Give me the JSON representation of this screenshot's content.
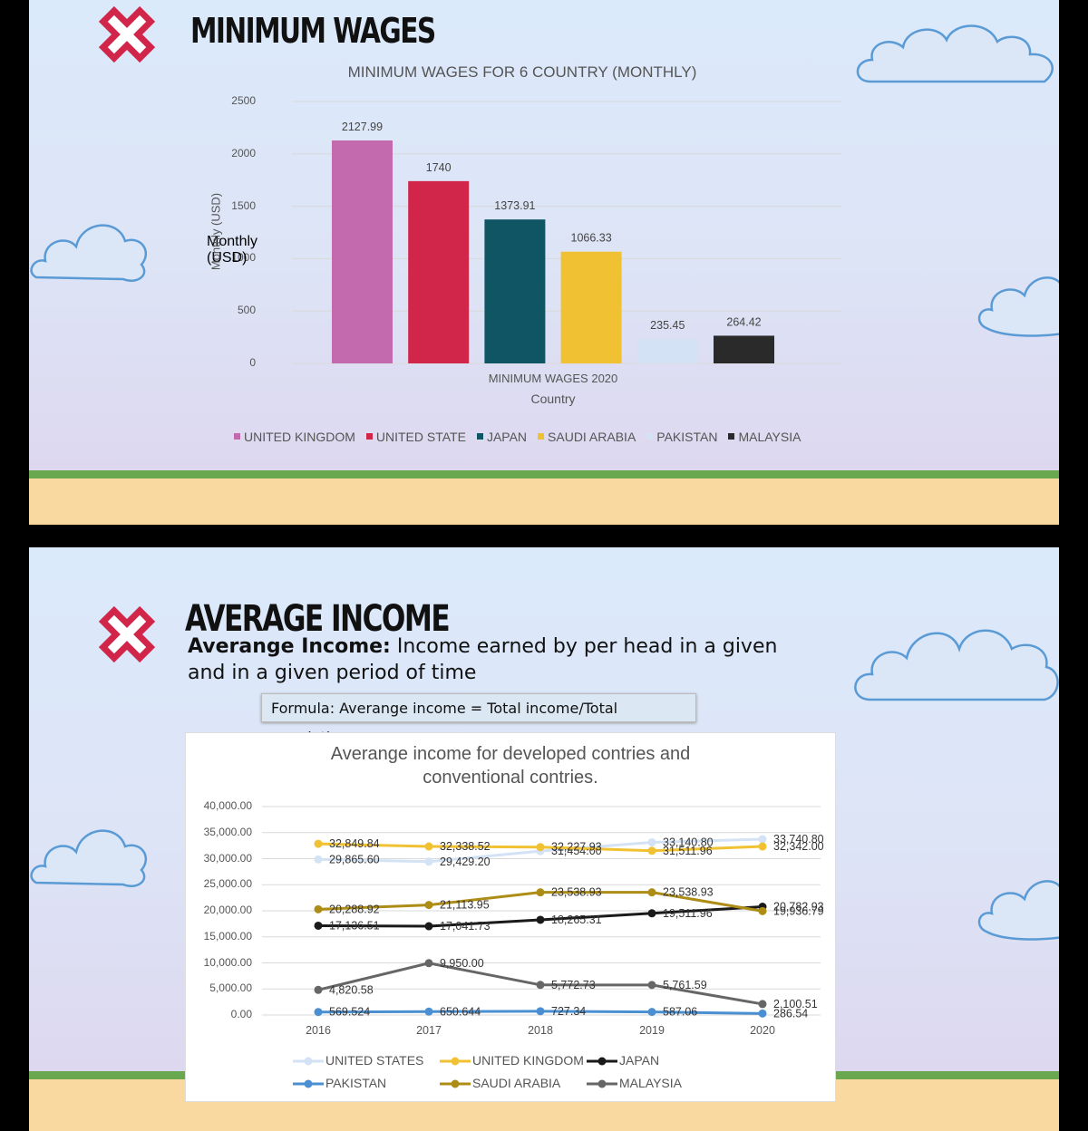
{
  "slide1": {
    "heading": "MINIMUM WAGES",
    "chart_data": {
      "type": "bar",
      "title": "MINIMUM WAGES FOR 6 COUNTRY (MONTHLY)",
      "xlabel": "Country",
      "ylabel": "Monthly (USD)",
      "category_label": "MINIMUM WAGES 2020",
      "ylim": [
        0,
        2500
      ],
      "yticks": [
        "0",
        "500",
        "1000",
        "1500",
        "2000",
        "2500"
      ],
      "grid": true,
      "legend_position": "bottom",
      "series": [
        {
          "name": "UNITED KINGDOM",
          "value": 2127.99,
          "label": "2127.99",
          "color": "#c36aaf"
        },
        {
          "name": "UNITED STATE",
          "value": 1740,
          "label": "1740",
          "color": "#d1254a"
        },
        {
          "name": "JAPAN",
          "value": 1373.91,
          "label": "1373.91",
          "color": "#0f5564"
        },
        {
          "name": "SAUDI ARABIA",
          "value": 1066.33,
          "label": "1066.33",
          "color": "#f0c233"
        },
        {
          "name": "PAKISTAN",
          "value": 235.45,
          "label": "235.45",
          "color": "#d3e2f4"
        },
        {
          "name": "MALAYSIA",
          "value": 264.42,
          "label": "264.42",
          "color": "#2a2a2a"
        }
      ]
    }
  },
  "slide2": {
    "heading": "AVERAGE INCOME",
    "definition_term": "Averange Income:",
    "definition_text_line1": " Income earned by per head in a given",
    "definition_text_line2": "and in a given period of time",
    "formula": "Formula: Averange income = Total income/Total population.",
    "chart_data": {
      "type": "line",
      "title_line1": "Averange income for developed contries and",
      "title_line2": "conventional contries.",
      "x": [
        "2016",
        "2017",
        "2018",
        "2019",
        "2020"
      ],
      "ylim": [
        0,
        40000
      ],
      "yticks": [
        "0.00",
        "5,000.00",
        "10,000.00",
        "15,000.00",
        "20,000.00",
        "25,000.00",
        "30,000.00",
        "35,000.00",
        "40,000.00"
      ],
      "grid": true,
      "legend_position": "bottom",
      "series": [
        {
          "name": "UNITED STATES",
          "color": "#d3e2f4",
          "values": [
            29865.6,
            29429.2,
            31454.0,
            33140.8,
            33740.8
          ],
          "labels": [
            "29,865.60",
            "29,429.20",
            "31,454.00",
            "33,140.80",
            "33,740.80"
          ]
        },
        {
          "name": "UNITED KINGDOM",
          "color": "#f0c233",
          "values": [
            32849.84,
            32338.52,
            32227.93,
            31511.96,
            32342.0
          ],
          "labels": [
            "32,849.84",
            "32,338.52",
            "32,227.93",
            "31,511.96",
            "32,342.00"
          ]
        },
        {
          "name": "JAPAN",
          "color": "#1a1a1a",
          "values": [
            17136.51,
            17041.73,
            18265.31,
            19511.96,
            20782.93
          ],
          "labels": [
            "17,136.51",
            "17,041.73",
            "18,265.31",
            "19,511.96",
            "20,782.93"
          ]
        },
        {
          "name": "PAKISTAN",
          "color": "#4a8fd1",
          "values": [
            569.524,
            650.644,
            727.34,
            587.06,
            286.54
          ],
          "labels": [
            "569.524",
            "650.644",
            "727.34",
            "587.06",
            "286.54"
          ]
        },
        {
          "name": "SAUDI ARABIA",
          "color": "#ad8d16",
          "values": [
            20288.92,
            21113.95,
            23538.93,
            23538.93,
            19936.79
          ],
          "labels": [
            "20,288.92",
            "21,113.95",
            "23,538.93",
            "23,538.93",
            "19,936.79"
          ]
        },
        {
          "name": "MALAYSIA",
          "color": "#666666",
          "values": [
            4820.58,
            9950.0,
            5772.73,
            5761.59,
            2100.51
          ],
          "labels": [
            "4,820.58",
            "9,950.00",
            "5,772.73",
            "5,761.59",
            "2,100.51"
          ]
        }
      ]
    }
  }
}
